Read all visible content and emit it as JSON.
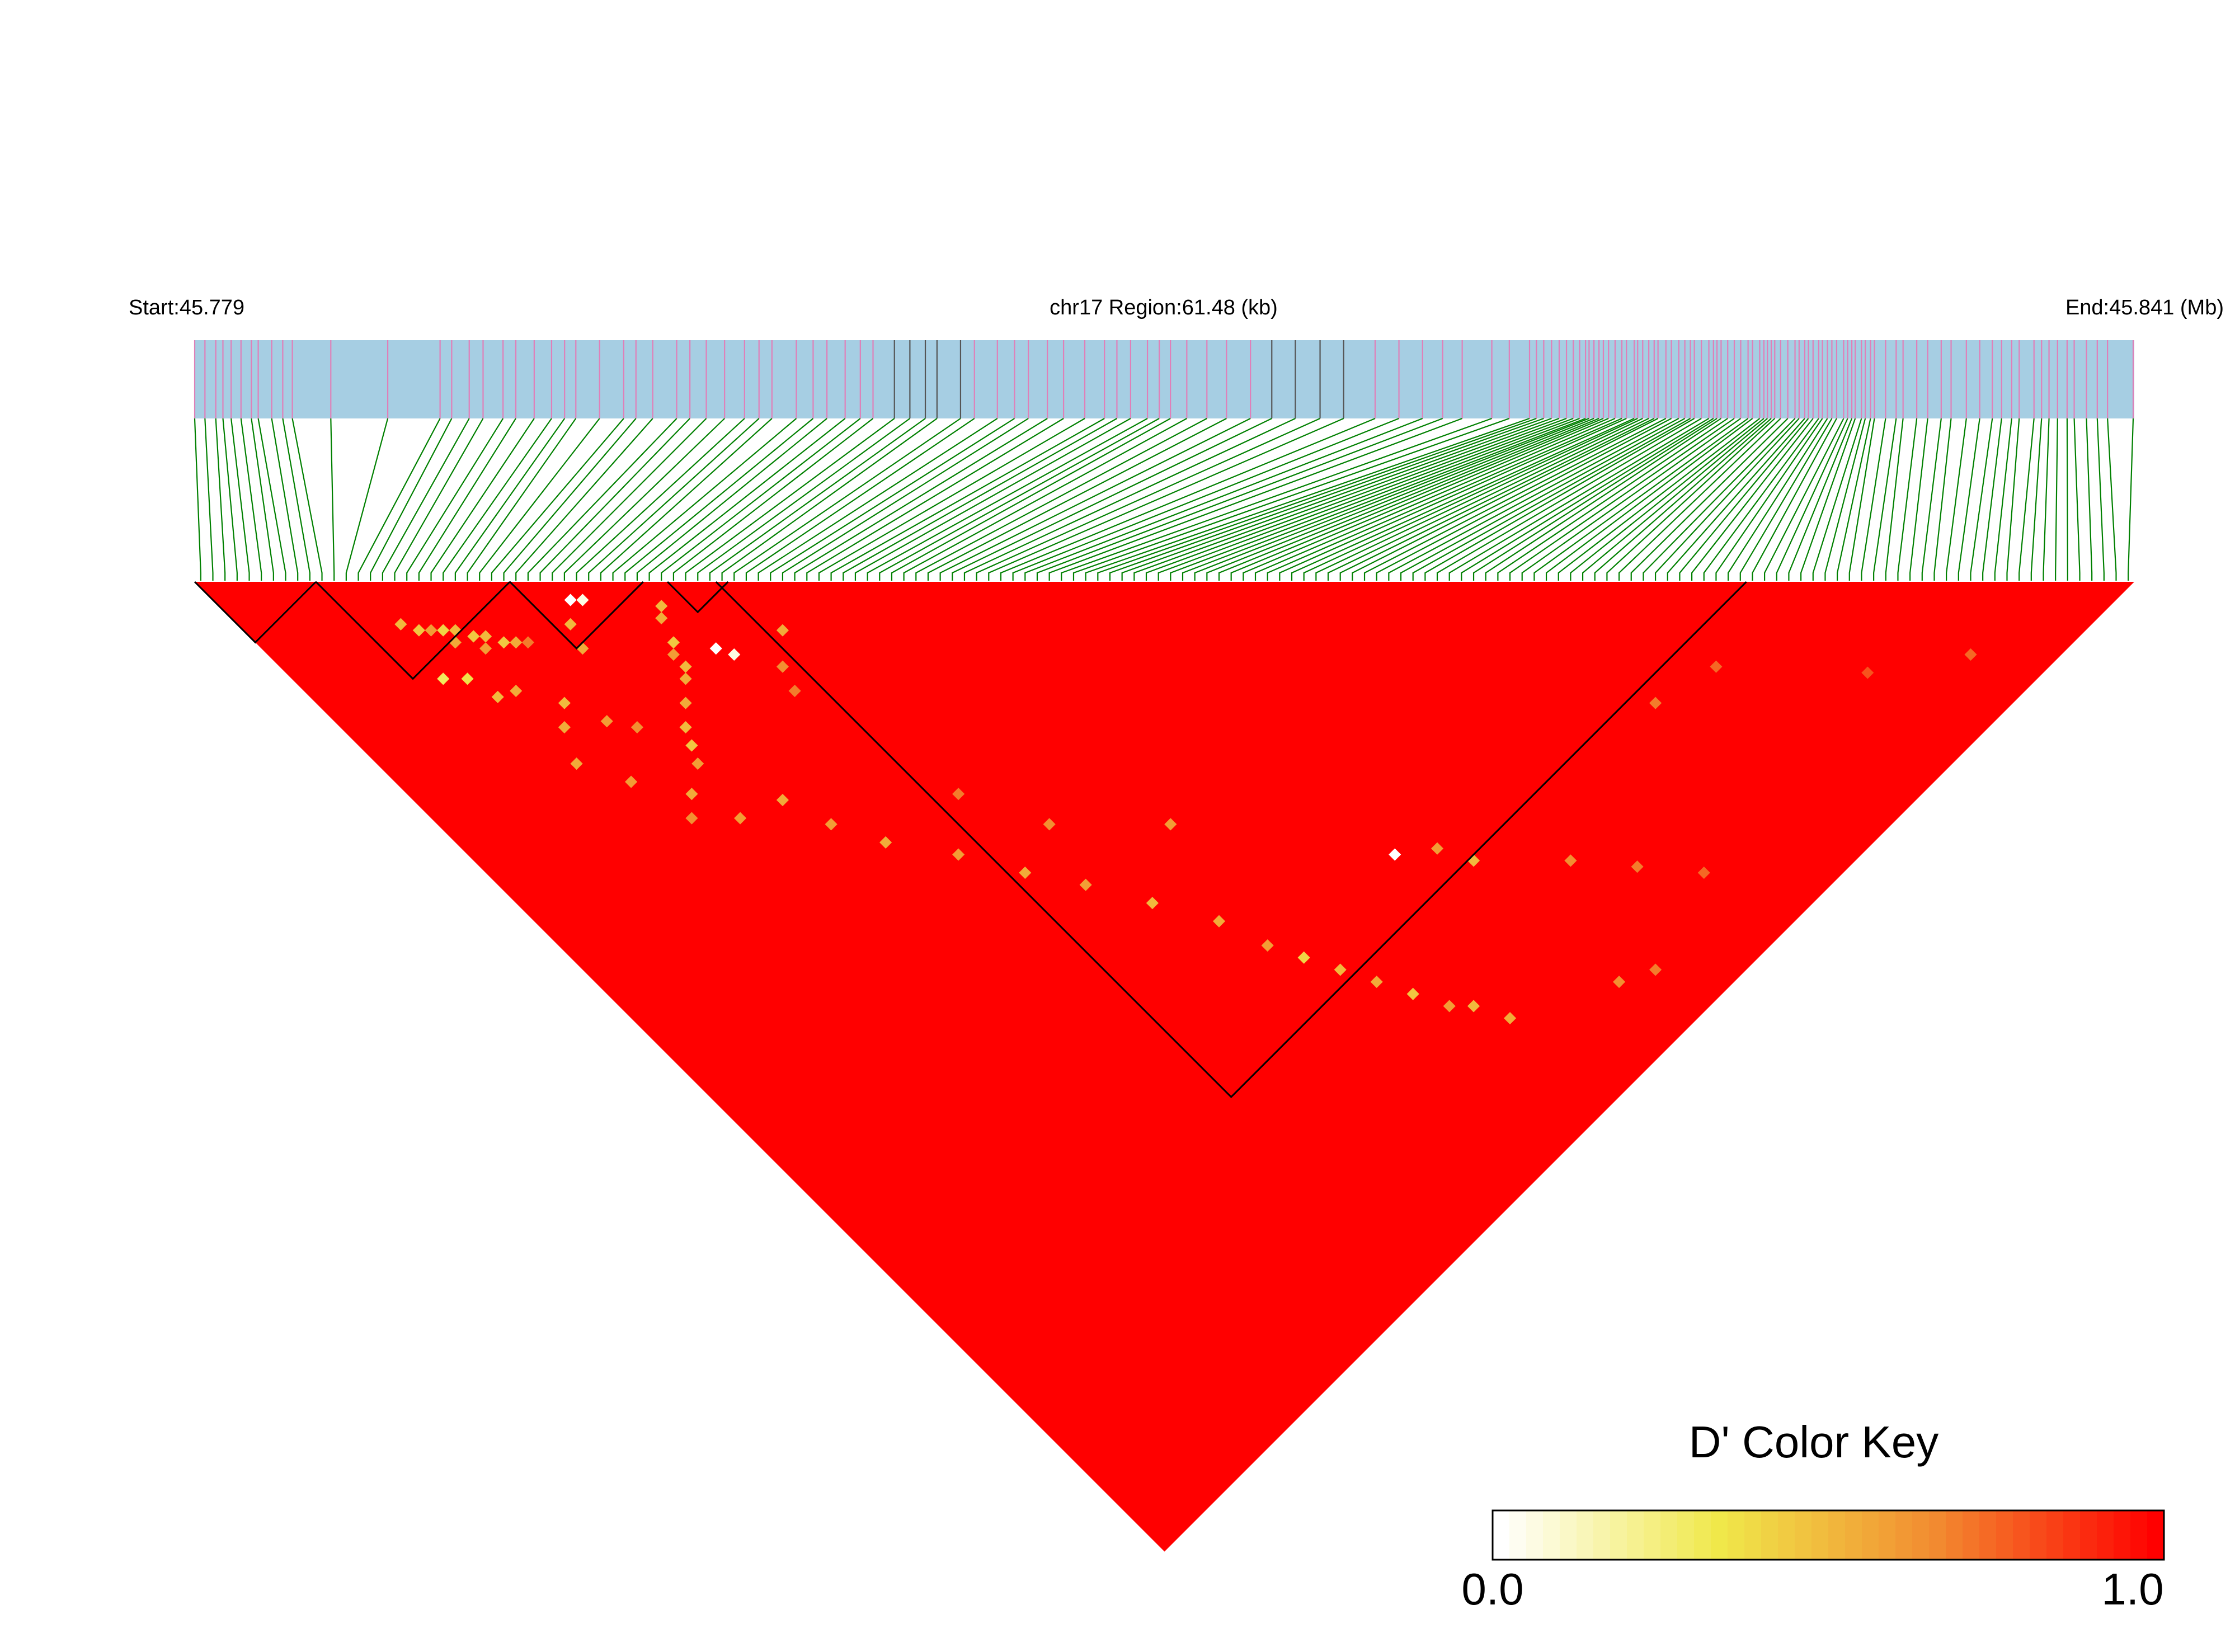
{
  "chart_data": {
    "type": "heatmap",
    "header": {
      "start_label": "Start:45.779",
      "region_label": "chr17 Region:61.48 (kb)",
      "end_label": "End:45.841 (Mb)"
    },
    "region": {
      "chromosome": "chr17",
      "start_mb": 45.779,
      "end_mb": 45.841,
      "length_kb": 61.48
    },
    "snp_count": 160,
    "background_dprime": 1.0,
    "haplotype_blocks": [
      {
        "first_snp": 0,
        "last_snp": 9
      },
      {
        "first_snp": 10,
        "last_snp": 25
      },
      {
        "first_snp": 26,
        "last_snp": 36
      },
      {
        "first_snp": 39,
        "last_snp": 43
      },
      {
        "first_snp": 43,
        "last_snp": 127
      }
    ],
    "low_dprime_cells": [
      {
        "i": 13,
        "j": 20,
        "d": 0.5
      },
      {
        "i": 14,
        "j": 22,
        "d": 0.45
      },
      {
        "i": 15,
        "j": 23,
        "d": 0.6
      },
      {
        "i": 16,
        "j": 24,
        "d": 0.4
      },
      {
        "i": 16,
        "j": 26,
        "d": 0.55
      },
      {
        "i": 17,
        "j": 25,
        "d": 0.5
      },
      {
        "i": 18,
        "j": 27,
        "d": 0.45
      },
      {
        "i": 18,
        "j": 29,
        "d": 0.6
      },
      {
        "i": 19,
        "j": 28,
        "d": 0.5
      },
      {
        "i": 20,
        "j": 30,
        "d": 0.45
      },
      {
        "i": 21,
        "j": 31,
        "d": 0.55
      },
      {
        "i": 22,
        "j": 32,
        "d": 0.7
      },
      {
        "i": 12,
        "j": 28,
        "d": 0.3
      },
      {
        "i": 14,
        "j": 30,
        "d": 0.35
      },
      {
        "i": 15,
        "j": 34,
        "d": 0.5
      },
      {
        "i": 17,
        "j": 35,
        "d": 0.55
      },
      {
        "i": 29,
        "j": 32,
        "d": 0.0
      },
      {
        "i": 30,
        "j": 33,
        "d": 0.05
      },
      {
        "i": 27,
        "j": 34,
        "d": 0.5
      },
      {
        "i": 26,
        "j": 37,
        "d": 0.55
      },
      {
        "i": 36,
        "j": 40,
        "d": 0.5
      },
      {
        "i": 35,
        "j": 41,
        "d": 0.55
      },
      {
        "i": 34,
        "j": 44,
        "d": 0.45
      },
      {
        "i": 33,
        "j": 45,
        "d": 0.6
      },
      {
        "i": 33,
        "j": 47,
        "d": 0.5
      },
      {
        "i": 32,
        "j": 48,
        "d": 0.55
      },
      {
        "i": 37,
        "j": 48,
        "d": 0.0
      },
      {
        "i": 38,
        "j": 50,
        "d": 0.05
      },
      {
        "i": 30,
        "j": 50,
        "d": 0.55
      },
      {
        "i": 28,
        "j": 52,
        "d": 0.5
      },
      {
        "i": 27,
        "j": 54,
        "d": 0.45
      },
      {
        "i": 26,
        "j": 56,
        "d": 0.6
      },
      {
        "i": 44,
        "j": 52,
        "d": 0.55
      },
      {
        "i": 41,
        "j": 55,
        "d": 0.65
      },
      {
        "i": 40,
        "j": 58,
        "d": 0.7
      },
      {
        "i": 20,
        "j": 40,
        "d": 0.5
      },
      {
        "i": 18,
        "j": 42,
        "d": 0.55
      },
      {
        "i": 22,
        "j": 45,
        "d": 0.6
      },
      {
        "i": 24,
        "j": 48,
        "d": 0.65
      },
      {
        "i": 16,
        "j": 46,
        "d": 0.55
      },
      {
        "i": 19,
        "j": 52,
        "d": 0.6
      },
      {
        "i": 23,
        "j": 58,
        "d": 0.55
      },
      {
        "i": 21,
        "j": 60,
        "d": 0.65
      },
      {
        "i": 25,
        "j": 64,
        "d": 0.6
      },
      {
        "i": 30,
        "j": 66,
        "d": 0.55
      },
      {
        "i": 32,
        "j": 72,
        "d": 0.6
      },
      {
        "i": 35,
        "j": 78,
        "d": 0.55
      },
      {
        "i": 40,
        "j": 85,
        "d": 0.6
      },
      {
        "i": 44,
        "j": 92,
        "d": 0.55
      },
      {
        "i": 48,
        "j": 98,
        "d": 0.6
      },
      {
        "i": 52,
        "j": 105,
        "d": 0.5
      },
      {
        "i": 56,
        "j": 112,
        "d": 0.55
      },
      {
        "i": 58,
        "j": 118,
        "d": 0.6
      },
      {
        "i": 60,
        "j": 122,
        "d": 0.4
      },
      {
        "i": 62,
        "j": 126,
        "d": 0.5
      },
      {
        "i": 64,
        "j": 130,
        "d": 0.55
      },
      {
        "i": 66,
        "j": 134,
        "d": 0.45
      },
      {
        "i": 68,
        "j": 138,
        "d": 0.6
      },
      {
        "i": 70,
        "j": 140,
        "d": 0.5
      },
      {
        "i": 72,
        "j": 144,
        "d": 0.55
      },
      {
        "i": 76,
        "j": 121,
        "d": 0.0
      },
      {
        "i": 80,
        "j": 124,
        "d": 0.6
      },
      {
        "i": 82,
        "j": 128,
        "d": 0.5
      },
      {
        "i": 90,
        "j": 136,
        "d": 0.65
      },
      {
        "i": 95,
        "j": 142,
        "d": 0.7
      },
      {
        "i": 100,
        "j": 148,
        "d": 0.75
      },
      {
        "i": 84,
        "j": 150,
        "d": 0.65
      },
      {
        "i": 88,
        "j": 152,
        "d": 0.7
      },
      {
        "i": 60,
        "j": 100,
        "d": 0.6
      },
      {
        "i": 50,
        "j": 90,
        "d": 0.65
      },
      {
        "i": 45,
        "j": 80,
        "d": 0.7
      },
      {
        "i": 110,
        "j": 130,
        "d": 0.7
      },
      {
        "i": 118,
        "j": 132,
        "d": 0.75
      },
      {
        "i": 130,
        "j": 145,
        "d": 0.8
      },
      {
        "i": 140,
        "j": 152,
        "d": 0.75
      }
    ],
    "legend": {
      "title": "D' Color Key",
      "min_label": "0.0",
      "max_label": "1.0",
      "range": [
        0,
        1
      ],
      "colors": [
        "#ffffff",
        "#f0e84a",
        "#f28a30",
        "#ff0000"
      ]
    },
    "colors": {
      "track_fill": "#a6cee3",
      "snp_tick": "#e07fb8",
      "snp_tick_dark": "#555555",
      "connector": "#008000",
      "block_outline": "#000000"
    }
  }
}
